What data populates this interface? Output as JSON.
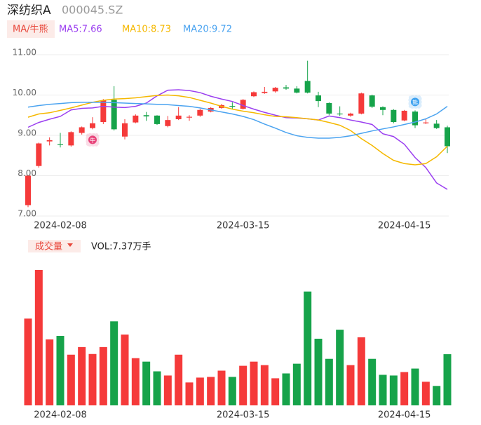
{
  "header": {
    "name": "深纺织A",
    "code": "000045.SZ"
  },
  "chart_data": [
    {
      "type": "candlestick",
      "button": "MA/牛熊",
      "categories": [
        null,
        null,
        null,
        "2024-02-08",
        null,
        null,
        null,
        null,
        null,
        null,
        null,
        null,
        null,
        null,
        null,
        null,
        null,
        null,
        null,
        null,
        "2024-03-15",
        null,
        null,
        null,
        null,
        null,
        null,
        null,
        null,
        null,
        null,
        null,
        null,
        null,
        null,
        "2024-04-15",
        null,
        null,
        null,
        null
      ],
      "open": [
        7.27,
        8.24,
        8.85,
        8.78,
        8.75,
        9.06,
        9.18,
        9.33,
        9.88,
        8.97,
        9.32,
        9.5,
        9.49,
        9.23,
        9.4,
        9.44,
        9.49,
        9.59,
        9.68,
        9.73,
        9.66,
        9.97,
        10.05,
        10.09,
        10.19,
        10.16,
        10.35,
        9.99,
        9.8,
        9.54,
        9.49,
        9.54,
        9.99,
        9.7,
        9.63,
        9.37,
        9.59,
        9.3,
        9.29,
        9.2
      ],
      "high": [
        8.0,
        8.82,
        8.95,
        9.06,
        9.1,
        9.22,
        9.45,
        9.9,
        10.22,
        9.4,
        9.52,
        9.58,
        9.5,
        9.48,
        9.7,
        9.5,
        9.66,
        9.7,
        9.78,
        9.82,
        9.9,
        10.09,
        10.2,
        10.2,
        10.25,
        10.22,
        10.85,
        10.08,
        9.82,
        9.72,
        9.56,
        10.06,
        10.01,
        9.72,
        9.65,
        9.63,
        9.62,
        9.42,
        9.38,
        9.24
      ],
      "low": [
        7.22,
        8.2,
        8.75,
        8.7,
        8.72,
        9.02,
        9.15,
        9.28,
        9.12,
        8.9,
        9.3,
        9.36,
        9.26,
        9.2,
        9.38,
        9.36,
        9.46,
        9.57,
        9.66,
        9.66,
        9.64,
        9.95,
        10.03,
        10.06,
        10.13,
        10.04,
        10.04,
        9.7,
        9.5,
        9.48,
        9.46,
        9.52,
        9.68,
        9.5,
        9.3,
        9.35,
        9.18,
        9.28,
        9.16,
        8.56
      ],
      "close": [
        8.0,
        8.8,
        8.88,
        8.76,
        9.08,
        9.2,
        9.3,
        9.87,
        9.15,
        9.3,
        9.49,
        9.47,
        9.28,
        9.38,
        9.49,
        9.46,
        9.63,
        9.68,
        9.75,
        9.71,
        9.88,
        10.07,
        10.08,
        10.18,
        10.16,
        10.06,
        10.06,
        9.85,
        9.54,
        9.52,
        9.54,
        10.04,
        9.71,
        9.63,
        9.33,
        9.61,
        9.25,
        9.32,
        9.18,
        8.73
      ],
      "up_color": "#f53a3a",
      "down_color": "#16a34a",
      "ylim": [
        7,
        11
      ],
      "yticks": [
        {
          "value": 7,
          "label": "7.00"
        },
        {
          "value": 8,
          "label": "8.00"
        },
        {
          "value": 9,
          "label": "9.00"
        },
        {
          "value": 10,
          "label": "10.00"
        },
        {
          "value": 11,
          "label": "11.00"
        }
      ],
      "grid": true,
      "series": [
        {
          "name": "MA5:7.66",
          "color": "#9b3ff0",
          "values": [
            9.2,
            9.32,
            9.4,
            9.47,
            9.63,
            9.67,
            9.68,
            9.72,
            9.7,
            9.69,
            9.72,
            9.8,
            9.98,
            10.12,
            10.13,
            10.11,
            10.06,
            9.97,
            9.9,
            9.84,
            9.74,
            9.65,
            9.57,
            9.5,
            9.44,
            9.43,
            9.41,
            9.38,
            9.48,
            9.44,
            9.38,
            9.33,
            9.27,
            9.04,
            8.97,
            8.78,
            8.45,
            8.2,
            7.82,
            7.66
          ]
        },
        {
          "name": "MA10:8.73",
          "color": "#f5b800",
          "values": [
            9.45,
            9.53,
            9.56,
            9.62,
            9.68,
            9.75,
            9.82,
            9.87,
            9.9,
            9.91,
            9.93,
            9.96,
            9.99,
            10.0,
            9.98,
            9.94,
            9.87,
            9.8,
            9.72,
            9.65,
            9.6,
            9.56,
            9.51,
            9.47,
            9.46,
            9.44,
            9.41,
            9.38,
            9.32,
            9.25,
            9.12,
            8.92,
            8.75,
            8.55,
            8.38,
            8.3,
            8.27,
            8.3,
            8.47,
            8.73
          ]
        },
        {
          "name": "MA20:9.72",
          "color": "#4aa3f0",
          "values": [
            9.7,
            9.74,
            9.77,
            9.79,
            9.81,
            9.82,
            9.82,
            9.82,
            9.81,
            9.8,
            9.79,
            9.78,
            9.77,
            9.76,
            9.74,
            9.72,
            9.68,
            9.63,
            9.58,
            9.53,
            9.47,
            9.39,
            9.28,
            9.18,
            9.07,
            8.99,
            8.95,
            8.93,
            8.93,
            8.95,
            8.99,
            9.05,
            9.11,
            9.16,
            9.21,
            9.27,
            9.33,
            9.41,
            9.53,
            9.72
          ]
        }
      ],
      "markers": [
        {
          "index": 6,
          "label": "牛",
          "color": "#e8447a"
        },
        {
          "index": 36,
          "label": "熊",
          "color": "#3aa0f0"
        }
      ]
    },
    {
      "type": "bar",
      "button": "成交量",
      "label": "VOL:7.37万手",
      "values": [
        12.5,
        19.5,
        9.5,
        10.0,
        7.3,
        8.4,
        7.4,
        8.4,
        12.1,
        10.2,
        6.8,
        6.3,
        4.9,
        4.3,
        7.3,
        3.3,
        4.0,
        4.1,
        5.0,
        4.1,
        5.7,
        6.3,
        5.8,
        3.9,
        4.6,
        6.0,
        16.4,
        9.6,
        6.7,
        10.9,
        5.8,
        9.8,
        6.7,
        4.4,
        4.3,
        4.8,
        5.3,
        3.4,
        2.8,
        7.37
      ],
      "ylim": [
        0,
        19.5
      ]
    }
  ]
}
